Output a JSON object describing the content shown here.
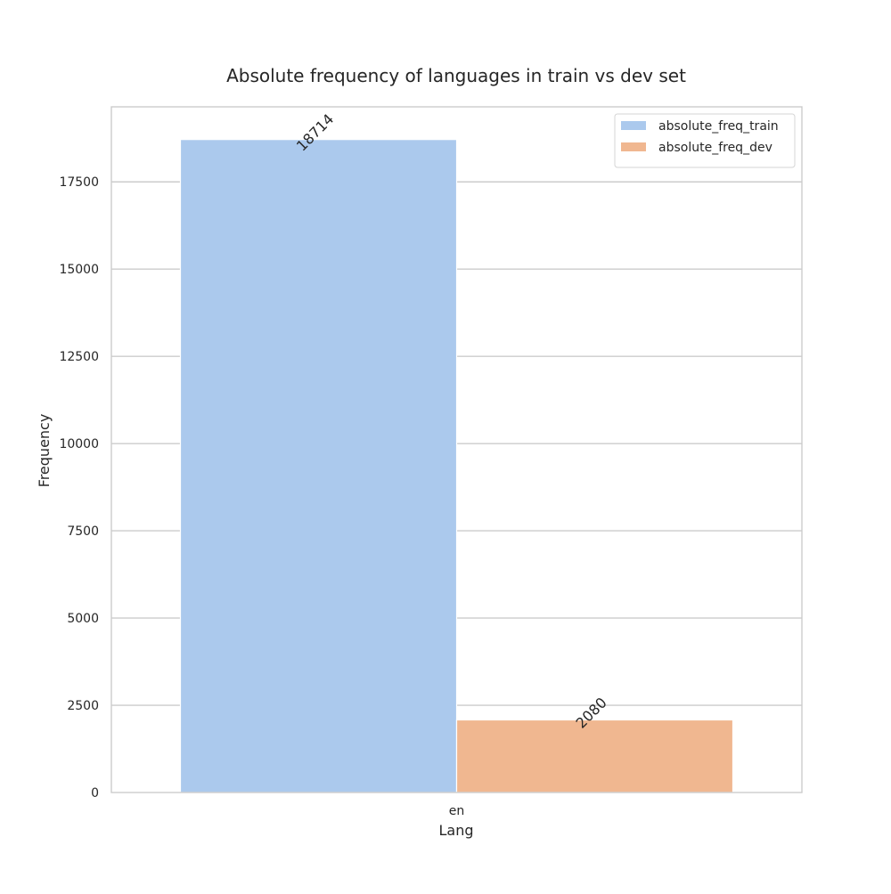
{
  "chart_data": {
    "type": "bar",
    "title": "Absolute frequency of languages in train vs dev set",
    "xlabel": "Lang",
    "ylabel": "Frequency",
    "categories": [
      "en"
    ],
    "series": [
      {
        "name": "absolute_freq_train",
        "values": [
          18714
        ],
        "color": "#abc9ed"
      },
      {
        "name": "absolute_freq_dev",
        "values": [
          2080
        ],
        "color": "#f0b790"
      }
    ],
    "y_ticks": [
      0,
      2500,
      5000,
      7500,
      10000,
      12500,
      15000,
      17500
    ],
    "ylim": [
      0,
      19650
    ],
    "grid": true,
    "legend_position": "top-right",
    "data_labels": [
      "18714",
      "2080"
    ]
  }
}
